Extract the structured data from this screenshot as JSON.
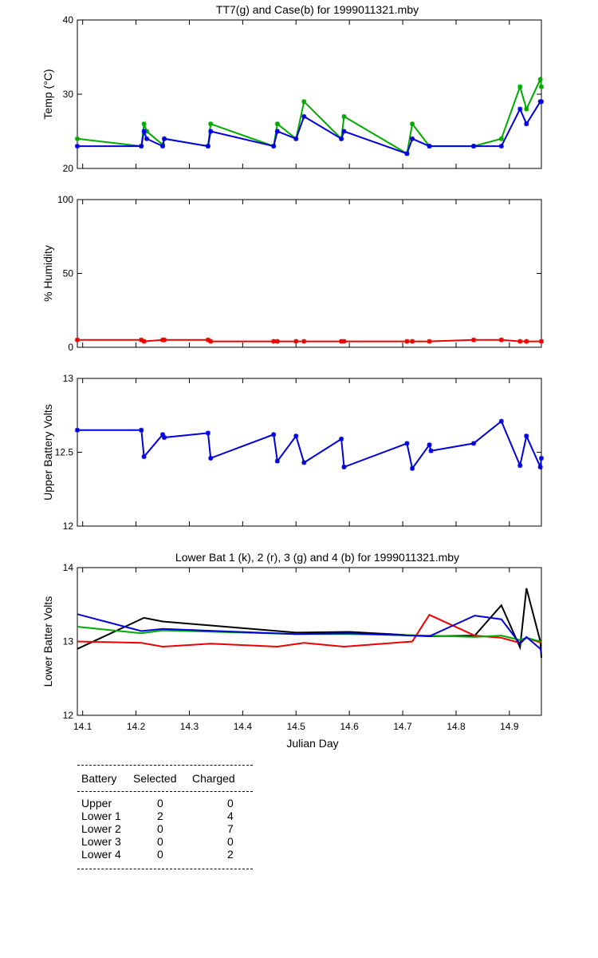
{
  "chart_data": [
    {
      "type": "line",
      "title": "TT7(g) and Case(b) for 1999011321.mby",
      "xlabel": "",
      "ylabel": "Temp  (°C)",
      "ylim": [
        20,
        40
      ],
      "yticks": [
        20,
        30,
        40
      ],
      "xlim": [
        14.09,
        14.96
      ],
      "markers": true,
      "series": [
        {
          "color": "#00aa00",
          "x": [
            14.09,
            14.21,
            14.215,
            14.22,
            14.25,
            14.253,
            14.335,
            14.34,
            14.458,
            14.465,
            14.5,
            14.515,
            14.585,
            14.59,
            14.708,
            14.718,
            14.75,
            14.833,
            14.885,
            14.92,
            14.932,
            14.958,
            14.96
          ],
          "y": [
            24,
            23,
            26,
            25,
            23.2,
            24,
            23,
            26,
            23,
            26,
            24,
            29,
            24,
            27,
            22,
            26,
            23,
            23,
            24,
            31,
            28,
            32,
            31
          ]
        },
        {
          "color": "#0000dd",
          "x": [
            14.09,
            14.21,
            14.215,
            14.22,
            14.25,
            14.253,
            14.335,
            14.34,
            14.458,
            14.465,
            14.5,
            14.515,
            14.585,
            14.59,
            14.708,
            14.718,
            14.75,
            14.833,
            14.885,
            14.92,
            14.932,
            14.958,
            14.96
          ],
          "y": [
            23,
            23,
            25,
            24,
            23,
            24,
            23,
            25,
            23,
            25,
            24,
            27,
            24,
            25,
            22,
            24,
            23,
            23,
            23,
            28,
            26,
            29,
            29
          ]
        }
      ]
    },
    {
      "type": "line",
      "title": "",
      "xlabel": "",
      "ylabel": "% Humidity",
      "ylim": [
        0,
        100
      ],
      "yticks": [
        0,
        50,
        100
      ],
      "xlim": [
        14.09,
        14.96
      ],
      "markers": true,
      "series": [
        {
          "color": "#ee0000",
          "x": [
            14.09,
            14.21,
            14.215,
            14.25,
            14.253,
            14.335,
            14.34,
            14.458,
            14.465,
            14.5,
            14.515,
            14.585,
            14.59,
            14.708,
            14.718,
            14.75,
            14.833,
            14.885,
            14.92,
            14.932,
            14.96
          ],
          "y": [
            5,
            5,
            4,
            5,
            5,
            5,
            4,
            4,
            4,
            4,
            4,
            4,
            4,
            4,
            4,
            4,
            5,
            5,
            4,
            4,
            4
          ]
        }
      ]
    },
    {
      "type": "line",
      "title": "",
      "xlabel": "",
      "ylabel": "Upper Battery Volts",
      "ylim": [
        12,
        13
      ],
      "yticks": [
        12,
        12.5,
        13
      ],
      "ytick_labels": [
        "12",
        "12.5",
        "13"
      ],
      "xlim": [
        14.09,
        14.96
      ],
      "markers": true,
      "series": [
        {
          "color": "#0000dd",
          "x": [
            14.09,
            14.21,
            14.215,
            14.25,
            14.253,
            14.335,
            14.34,
            14.458,
            14.465,
            14.5,
            14.515,
            14.585,
            14.59,
            14.708,
            14.718,
            14.75,
            14.753,
            14.833,
            14.885,
            14.92,
            14.932,
            14.958,
            14.96
          ],
          "y": [
            12.65,
            12.65,
            12.47,
            12.62,
            12.6,
            12.63,
            12.46,
            12.62,
            12.44,
            12.61,
            12.43,
            12.59,
            12.4,
            12.56,
            12.39,
            12.55,
            12.51,
            12.56,
            12.71,
            12.41,
            12.61,
            12.4,
            12.46
          ]
        }
      ]
    },
    {
      "type": "line",
      "title": "Lower Bat 1 (k), 2 (r), 3 (g) and 4 (b) for 1999011321.mby",
      "xlabel": "Julian Day",
      "ylabel": "Lower Batter Volts",
      "ylim": [
        12,
        14
      ],
      "yticks": [
        12,
        13,
        14
      ],
      "xlim": [
        14.09,
        14.96
      ],
      "xticks": [
        14.1,
        14.2,
        14.3,
        14.4,
        14.5,
        14.6,
        14.7,
        14.8,
        14.9
      ],
      "xtick_labels": [
        "14.1",
        "14.2",
        "14.3",
        "14.4",
        "14.5",
        "14.6",
        "14.7",
        "14.8",
        "14.9"
      ],
      "markers": false,
      "series": [
        {
          "color": "#000000",
          "x": [
            14.09,
            14.215,
            14.25,
            14.5,
            14.6,
            14.75,
            14.835,
            14.885,
            14.92,
            14.932,
            14.958,
            14.96
          ],
          "y": [
            12.9,
            13.32,
            13.27,
            13.12,
            13.13,
            13.07,
            13.08,
            13.49,
            12.92,
            13.72,
            13.0,
            12.78
          ]
        },
        {
          "color": "#ee0000",
          "x": [
            14.09,
            14.21,
            14.25,
            14.34,
            14.465,
            14.515,
            14.59,
            14.718,
            14.75,
            14.835,
            14.885,
            14.92,
            14.932,
            14.96
          ],
          "y": [
            13.0,
            12.98,
            12.93,
            12.97,
            12.93,
            12.98,
            12.93,
            13.0,
            13.36,
            13.08,
            13.05,
            12.98,
            13.05,
            12.98
          ]
        },
        {
          "color": "#00aa00",
          "x": [
            14.09,
            14.21,
            14.25,
            14.5,
            14.6,
            14.75,
            14.835,
            14.885,
            14.92,
            14.932,
            14.958,
            14.96
          ],
          "y": [
            13.2,
            13.11,
            13.15,
            13.1,
            13.1,
            13.08,
            13.06,
            13.08,
            13.02,
            13.05,
            13.0,
            13.0
          ]
        },
        {
          "color": "#0000dd",
          "x": [
            14.09,
            14.21,
            14.25,
            14.5,
            14.6,
            14.75,
            14.835,
            14.885,
            14.92,
            14.932,
            14.958,
            14.96
          ],
          "y": [
            13.37,
            13.14,
            13.17,
            13.1,
            13.11,
            13.07,
            13.35,
            13.3,
            12.97,
            13.06,
            12.9,
            12.85
          ]
        }
      ]
    }
  ],
  "battery_table": {
    "headers": [
      "Battery",
      "Selected",
      "Charged"
    ],
    "rows": [
      {
        "battery": "Upper",
        "selected": "0",
        "charged": "0"
      },
      {
        "battery": "Lower 1",
        "selected": "2",
        "charged": "4"
      },
      {
        "battery": "Lower 2",
        "selected": "0",
        "charged": "7"
      },
      {
        "battery": "Lower 3",
        "selected": "0",
        "charged": "0"
      },
      {
        "battery": "Lower 4",
        "selected": "0",
        "charged": "2"
      }
    ]
  }
}
